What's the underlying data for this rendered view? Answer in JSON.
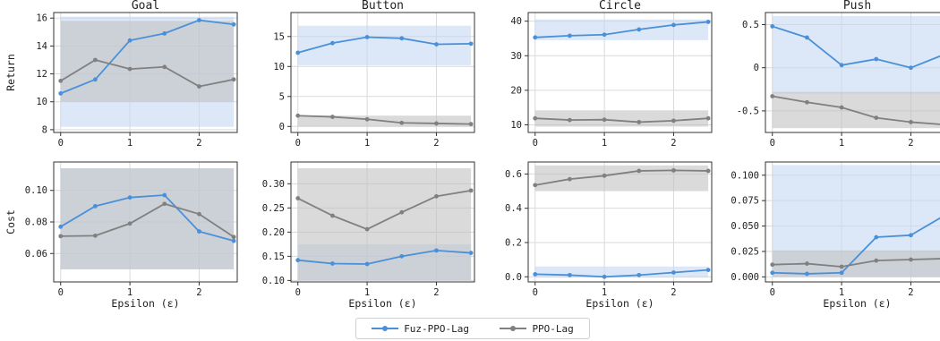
{
  "colors": {
    "fuz": "#4a90d9",
    "ppo": "#808080",
    "fuz_band": "#c5d9f1",
    "ppo_band": "#c2c2c2",
    "grid": "#d9d9d9"
  },
  "legend": {
    "fuz": "Fuz-PPO-Lag",
    "ppo": "PPO-Lag"
  },
  "chart_data": [
    {
      "type": "line",
      "title": "Goal",
      "ylabel": "Return",
      "xlabel": "",
      "xlim": [
        -0.1,
        2.55
      ],
      "ylim": [
        7.8,
        16.4
      ],
      "xticks": [
        "0",
        "1",
        "2"
      ],
      "yticks": [
        8,
        10,
        12,
        14,
        16
      ],
      "x": [
        0,
        0.5,
        1,
        1.5,
        2,
        2.5
      ],
      "series": [
        {
          "name": "Fuz-PPO-Lag",
          "values": [
            10.6,
            11.6,
            14.4,
            14.9,
            15.85,
            15.55
          ],
          "band": [
            8.2,
            16.1
          ]
        },
        {
          "name": "PPO-Lag",
          "values": [
            11.5,
            13.0,
            12.35,
            12.5,
            11.1,
            11.6
          ],
          "band": [
            10.0,
            15.8
          ]
        }
      ]
    },
    {
      "type": "line",
      "title": "Button",
      "ylabel": "",
      "xlabel": "",
      "xlim": [
        -0.1,
        2.55
      ],
      "ylim": [
        -1,
        19
      ],
      "xticks": [
        "0",
        "1",
        "2"
      ],
      "yticks": [
        0,
        5,
        10,
        15
      ],
      "x": [
        0,
        0.5,
        1,
        1.5,
        2,
        2.5
      ],
      "series": [
        {
          "name": "Fuz-PPO-Lag",
          "values": [
            12.3,
            13.9,
            14.9,
            14.7,
            13.7,
            13.8
          ],
          "band": [
            10.2,
            16.8
          ]
        },
        {
          "name": "PPO-Lag",
          "values": [
            1.8,
            1.6,
            1.2,
            0.6,
            0.5,
            0.4
          ],
          "band": [
            0.0,
            1.8
          ]
        }
      ]
    },
    {
      "type": "line",
      "title": "Circle",
      "ylabel": "",
      "xlabel": "",
      "xlim": [
        -0.1,
        2.55
      ],
      "ylim": [
        7.8,
        42.5
      ],
      "xticks": [
        "0",
        "1",
        "2"
      ],
      "yticks": [
        10,
        20,
        30,
        40
      ],
      "x": [
        0,
        0.5,
        1,
        1.5,
        2,
        2.5
      ],
      "series": [
        {
          "name": "Fuz-PPO-Lag",
          "values": [
            35.3,
            35.8,
            36.1,
            37.6,
            38.9,
            39.8
          ],
          "band": [
            34.5,
            40.5
          ]
        },
        {
          "name": "PPO-Lag",
          "values": [
            11.9,
            11.4,
            11.5,
            10.8,
            11.2,
            11.9
          ],
          "band": [
            9.5,
            14.2
          ]
        }
      ]
    },
    {
      "type": "line",
      "title": "Push",
      "ylabel": "",
      "xlabel": "",
      "xlim": [
        -0.1,
        2.55
      ],
      "ylim": [
        -0.75,
        0.64
      ],
      "xticks": [
        "0",
        "1",
        "2"
      ],
      "yticks": [
        -0.5,
        0.0,
        0.5
      ],
      "x": [
        0,
        0.5,
        1,
        1.5,
        2,
        2.5
      ],
      "series": [
        {
          "name": "Fuz-PPO-Lag",
          "values": [
            0.48,
            0.35,
            0.03,
            0.1,
            0.0,
            0.16
          ],
          "band": [
            -0.3,
            0.6
          ]
        },
        {
          "name": "PPO-Lag",
          "values": [
            -0.33,
            -0.4,
            -0.46,
            -0.58,
            -0.63,
            -0.66
          ],
          "band": [
            -0.7,
            -0.28
          ]
        }
      ]
    },
    {
      "type": "line",
      "title": "",
      "ylabel": "Cost",
      "xlabel": "Epsilon (ε)",
      "xlim": [
        -0.1,
        2.55
      ],
      "ylim": [
        0.042,
        0.118
      ],
      "xticks": [
        "0",
        "1",
        "2"
      ],
      "yticks": [
        0.06,
        0.08,
        0.1
      ],
      "yticklabels": [
        "0.06",
        "0.08",
        "0.10"
      ],
      "x": [
        0,
        0.5,
        1,
        1.5,
        2,
        2.5
      ],
      "series": [
        {
          "name": "Fuz-PPO-Lag",
          "values": [
            0.077,
            0.09,
            0.0955,
            0.097,
            0.074,
            0.068
          ],
          "band": [
            0.05,
            0.114
          ]
        },
        {
          "name": "PPO-Lag",
          "values": [
            0.071,
            0.0713,
            0.079,
            0.0915,
            0.085,
            0.0705
          ],
          "band": [
            0.05,
            0.114
          ]
        }
      ]
    },
    {
      "type": "line",
      "title": "",
      "ylabel": "",
      "xlabel": "Epsilon (ε)",
      "xlim": [
        -0.1,
        2.55
      ],
      "ylim": [
        0.097,
        0.345
      ],
      "xticks": [
        "0",
        "1",
        "2"
      ],
      "yticks": [
        0.1,
        0.15,
        0.2,
        0.25,
        0.3
      ],
      "yticklabels": [
        "0.10",
        "0.15",
        "0.20",
        "0.25",
        "0.30"
      ],
      "x": [
        0,
        0.5,
        1,
        1.5,
        2,
        2.5
      ],
      "series": [
        {
          "name": "Fuz-PPO-Lag",
          "values": [
            0.142,
            0.135,
            0.134,
            0.15,
            0.162,
            0.157
          ],
          "band": [
            0.1,
            0.175
          ]
        },
        {
          "name": "PPO-Lag",
          "values": [
            0.27,
            0.234,
            0.206,
            0.241,
            0.274,
            0.286
          ],
          "band": [
            0.1,
            0.332
          ]
        }
      ]
    },
    {
      "type": "line",
      "title": "",
      "ylabel": "",
      "xlabel": "Epsilon (ε)",
      "xlim": [
        -0.1,
        2.55
      ],
      "ylim": [
        -0.03,
        0.67
      ],
      "xticks": [
        "0",
        "1",
        "2"
      ],
      "yticks": [
        0.0,
        0.2,
        0.4,
        0.6
      ],
      "yticklabels": [
        "0.0",
        "0.2",
        "0.4",
        "0.6"
      ],
      "x": [
        0,
        0.5,
        1,
        1.5,
        2,
        2.5
      ],
      "series": [
        {
          "name": "Fuz-PPO-Lag",
          "values": [
            0.015,
            0.01,
            0.0,
            0.01,
            0.025,
            0.04
          ],
          "band": [
            -0.005,
            0.06
          ]
        },
        {
          "name": "PPO-Lag",
          "values": [
            0.535,
            0.57,
            0.59,
            0.618,
            0.621,
            0.618
          ],
          "band": [
            0.5,
            0.65
          ]
        }
      ]
    },
    {
      "type": "line",
      "title": "",
      "ylabel": "",
      "xlabel": "Epsilon (ε)",
      "xlim": [
        -0.1,
        2.55
      ],
      "ylim": [
        -0.005,
        0.113
      ],
      "xticks": [
        "0",
        "1",
        "2"
      ],
      "yticks": [
        0.0,
        0.025,
        0.05,
        0.075,
        0.1
      ],
      "yticklabels": [
        "0.000",
        "0.025",
        "0.050",
        "0.075",
        "0.100"
      ],
      "x": [
        0,
        0.5,
        1,
        1.5,
        2,
        2.5
      ],
      "series": [
        {
          "name": "Fuz-PPO-Lag",
          "values": [
            0.004,
            0.003,
            0.004,
            0.039,
            0.041,
            0.061
          ],
          "band": [
            0.0,
            0.11
          ]
        },
        {
          "name": "PPO-Lag",
          "values": [
            0.012,
            0.013,
            0.01,
            0.016,
            0.017,
            0.018
          ],
          "band": [
            0.0,
            0.026
          ]
        }
      ]
    }
  ]
}
